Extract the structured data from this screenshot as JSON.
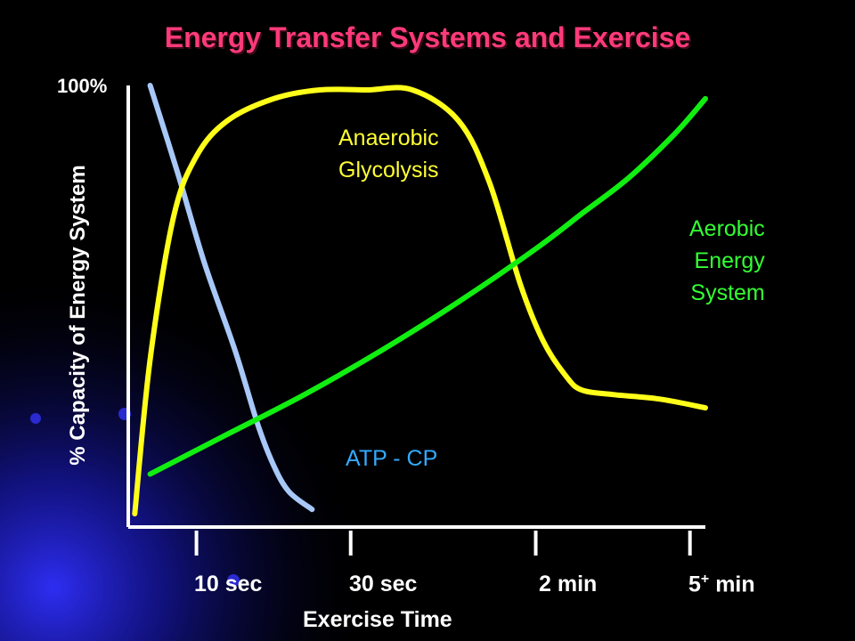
{
  "title": "Energy Transfer Systems and Exercise",
  "colors": {
    "background": "#000000",
    "title": "#ff3a7a",
    "text": "#ffffff",
    "axis": "#ffffff",
    "atp_cp": "#a8c8f8",
    "glycolysis": "#ffff1a",
    "aerobic": "#11ee11",
    "atp_cp_label": "#33aaff",
    "glycolysis_label": "#ffff33",
    "aerobic_label": "#33ff33"
  },
  "chart_data": {
    "type": "line",
    "title": "Energy Transfer Systems and Exercise",
    "xlabel": "Exercise Time",
    "ylabel": "% Capacity of Energy System",
    "y_top_label": "100%",
    "x_ticks": [
      {
        "main": "10 sec",
        "sup": "",
        "rest": ""
      },
      {
        "main": "30 sec",
        "sup": "",
        "rest": ""
      },
      {
        "main": "2 min",
        "sup": "",
        "rest": ""
      },
      {
        "main": "5",
        "sup": "+",
        "rest": " min"
      }
    ],
    "x_tick_positions": [
      0.5,
      1.5,
      2.7,
      3.7
    ],
    "xlim": [
      0,
      3.8
    ],
    "ylim": [
      0,
      100
    ],
    "grid": false,
    "legend": "none",
    "series": [
      {
        "name": "ATP - CP",
        "label_lines": [
          "ATP - CP"
        ],
        "x": [
          0.2,
          0.38,
          0.55,
          0.75,
          0.9,
          1.0,
          1.1,
          1.25
        ],
        "y": [
          100,
          80,
          60,
          40,
          23,
          14,
          8,
          4
        ]
      },
      {
        "name": "Anaerobic Glycolysis",
        "label_lines": [
          "Anaerobic",
          "Glycolysis"
        ],
        "x": [
          0.1,
          0.2,
          0.35,
          0.5,
          0.7,
          1.0,
          1.3,
          1.6,
          1.9,
          2.2,
          2.4,
          2.6,
          2.75,
          2.9,
          3.0,
          3.2,
          3.5,
          3.8
        ],
        "y": [
          3,
          38,
          70,
          84,
          92,
          97,
          99,
          99,
          99,
          92,
          78,
          55,
          42,
          34,
          31,
          30,
          29,
          27
        ]
      },
      {
        "name": "Aerobic Energy System",
        "label_lines": [
          "Aerobic",
          "Energy",
          "System"
        ],
        "x": [
          0.2,
          0.7,
          1.2,
          1.7,
          2.2,
          2.7,
          3.0,
          3.3,
          3.6,
          3.8
        ],
        "y": [
          12,
          21,
          30,
          40,
          51,
          63,
          71,
          79,
          89,
          97
        ]
      }
    ]
  }
}
